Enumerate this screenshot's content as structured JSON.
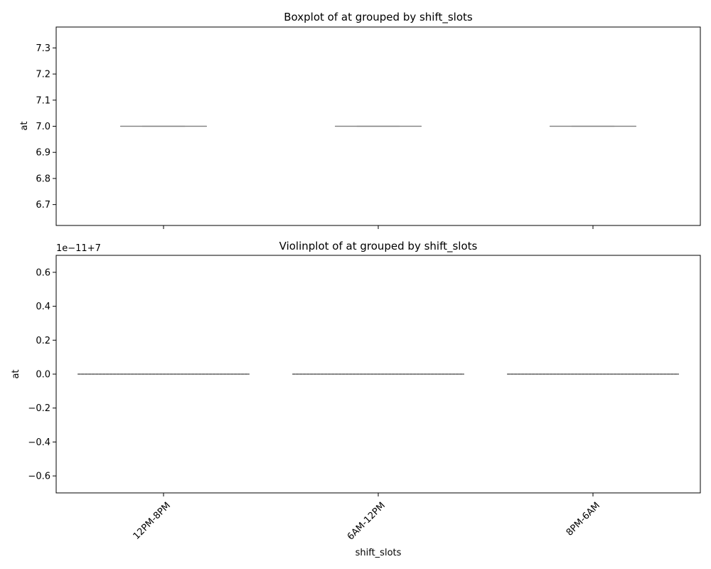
{
  "chart_data": [
    {
      "type": "box",
      "title": "Boxplot of at grouped by shift_slots",
      "xlabel": "",
      "ylabel": "at",
      "categories": [
        "12PM-8PM",
        "6AM-12PM",
        "8PM-6AM"
      ],
      "ylim": [
        6.62,
        7.38
      ],
      "yticks": [
        6.7,
        6.8,
        6.9,
        7.0,
        7.1,
        7.2,
        7.3
      ],
      "ytick_labels": [
        "6.7",
        "6.8",
        "6.9",
        "7.0",
        "7.1",
        "7.2",
        "7.3"
      ],
      "series": [
        {
          "category": "12PM-8PM",
          "min": 7.0,
          "q1": 7.0,
          "median": 7.0,
          "q3": 7.0,
          "max": 7.0
        },
        {
          "category": "6AM-12PM",
          "min": 7.0,
          "q1": 7.0,
          "median": 7.0,
          "q3": 7.0,
          "max": 7.0
        },
        {
          "category": "8PM-6AM",
          "min": 7.0,
          "q1": 7.0,
          "median": 7.0,
          "q3": 7.0,
          "max": 7.0
        }
      ],
      "color": "#808080"
    },
    {
      "type": "violin",
      "title": "Violinplot of at grouped by shift_slots",
      "xlabel": "shift_slots",
      "ylabel": "at",
      "offset_label": "1e−11+7",
      "categories": [
        "12PM-8PM",
        "6AM-12PM",
        "8PM-6AM"
      ],
      "ylim": [
        -0.7,
        0.7
      ],
      "yticks": [
        -0.6,
        -0.4,
        -0.2,
        0.0,
        0.2,
        0.4,
        0.6
      ],
      "ytick_labels": [
        "−0.6",
        "−0.4",
        "−0.2",
        "0.0",
        "0.2",
        "0.4",
        "0.6"
      ],
      "series": [
        {
          "category": "12PM-8PM",
          "value": 0.0
        },
        {
          "category": "6AM-12PM",
          "value": 0.0
        },
        {
          "category": "8PM-6AM",
          "value": 0.0
        }
      ],
      "color": "#808080"
    }
  ]
}
